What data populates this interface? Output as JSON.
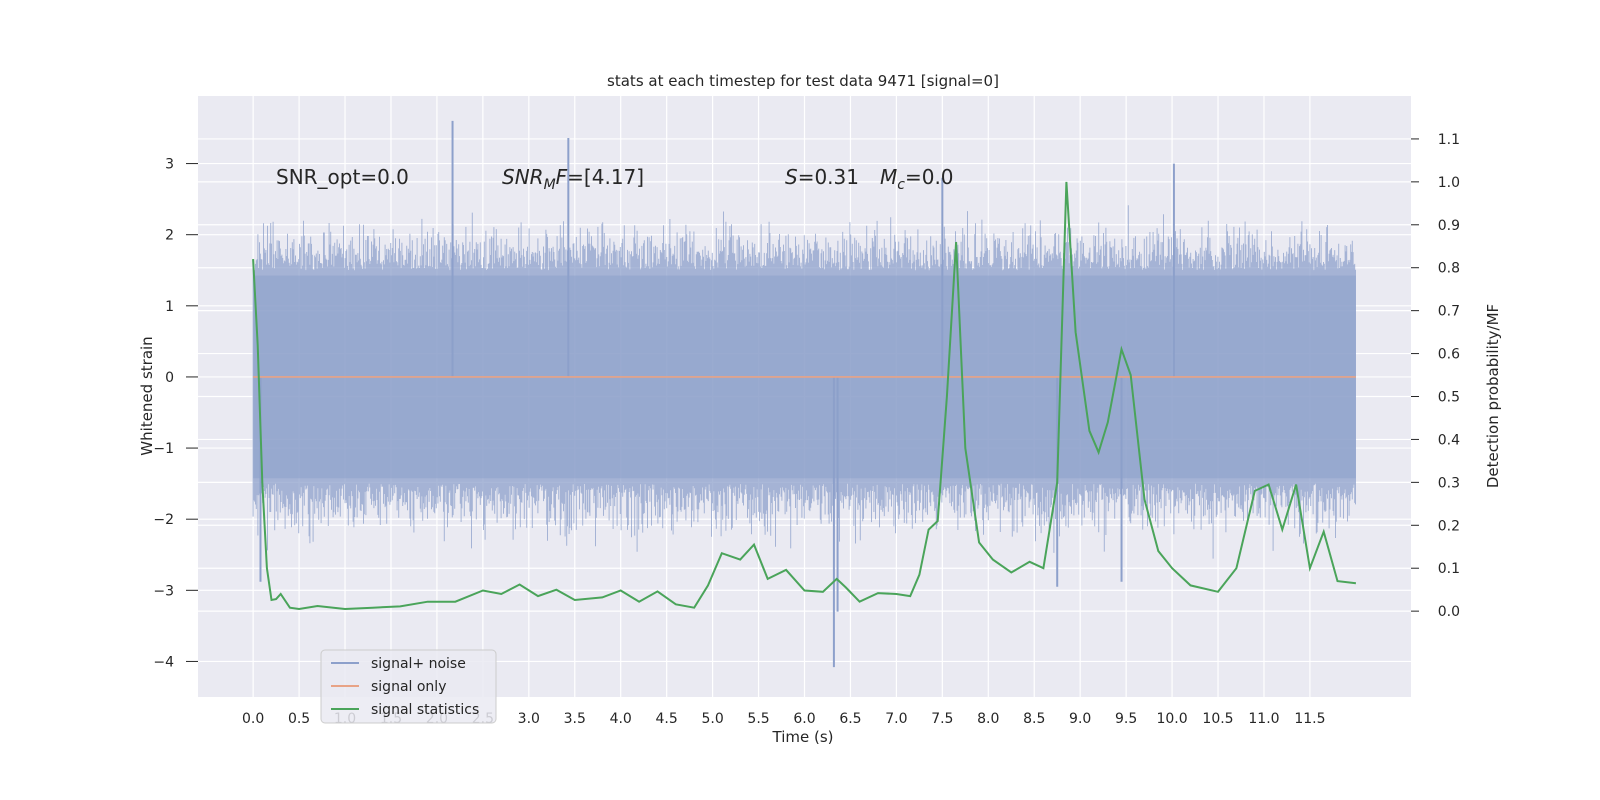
{
  "chart_data": {
    "type": "line",
    "title": "stats at each timestep for test data 9471 [signal=0]",
    "xlabel": "Time (s)",
    "ylabel": "Whitened strain",
    "ylabel_right": "Detection probability/MF",
    "xlim": [
      -0.6,
      12.6
    ],
    "ylim": [
      -4.5,
      3.95
    ],
    "ylim_right": [
      -0.2,
      1.2
    ],
    "x_ticks": [
      "0.0",
      "0.5",
      "1.0",
      "1.5",
      "2.0",
      "2.5",
      "3.0",
      "3.5",
      "4.0",
      "4.5",
      "5.0",
      "5.5",
      "6.0",
      "6.5",
      "7.0",
      "7.5",
      "8.0",
      "8.5",
      "9.0",
      "9.5",
      "10.0",
      "10.5",
      "11.0",
      "11.5"
    ],
    "y_ticks": [
      -4,
      -3,
      -2,
      -1,
      0,
      1,
      2,
      3
    ],
    "y_tick_labels": [
      "−4",
      "−3",
      "−2",
      "−1",
      "0",
      "1",
      "2",
      "3"
    ],
    "y2_ticks": [
      0.0,
      0.1,
      0.2,
      0.3,
      0.4,
      0.5,
      0.6,
      0.7,
      0.8,
      0.9,
      1.0,
      1.1
    ],
    "y2_tick_labels": [
      "0.0",
      "0.1",
      "0.2",
      "0.3",
      "0.4",
      "0.5",
      "0.6",
      "0.7",
      "0.8",
      "0.9",
      "1.0",
      "1.1"
    ],
    "annotations": [
      {
        "id": "snr-opt",
        "text": "SNR_opt=0.0"
      },
      {
        "id": "snr-mf",
        "base": "SNR",
        "sub": "M",
        "rest": "F=[4.17]"
      },
      {
        "id": "s-stat",
        "italic": "S",
        "rest": "=0.31"
      },
      {
        "id": "mc",
        "base": "M",
        "sub": "c",
        "rest": "=0.0"
      }
    ],
    "legend": {
      "position": "lower-left",
      "entries": [
        {
          "label": "signal+ noise",
          "color": "#8da0cb"
        },
        {
          "label": "signal only",
          "color": "#e8a386"
        },
        {
          "label": "signal statistics",
          "color": "#4aa45a"
        }
      ]
    },
    "series": [
      {
        "name": "signal+ noise",
        "axis": "left",
        "kind": "noise-band",
        "x_range": [
          0.0,
          12.0
        ],
        "typical_range": [
          -1.5,
          1.5
        ],
        "min": -4.08,
        "max": 3.6,
        "spikes": [
          {
            "x": 2.17,
            "y": 3.6
          },
          {
            "x": 3.43,
            "y": 3.36
          },
          {
            "x": 10.02,
            "y": 3.0
          },
          {
            "x": 7.5,
            "y": 2.8
          },
          {
            "x": 6.32,
            "y": -4.08
          },
          {
            "x": 6.36,
            "y": -3.3
          },
          {
            "x": 8.75,
            "y": -2.95
          },
          {
            "x": 9.45,
            "y": -2.88
          },
          {
            "x": 0.08,
            "y": -2.88
          }
        ]
      },
      {
        "name": "signal only",
        "axis": "left",
        "x": [
          0.0,
          12.0
        ],
        "y": [
          0.0,
          0.0
        ]
      },
      {
        "name": "signal statistics",
        "axis": "right",
        "x": [
          0.0,
          0.05,
          0.1,
          0.15,
          0.2,
          0.25,
          0.3,
          0.4,
          0.5,
          0.7,
          1.0,
          1.3,
          1.6,
          1.9,
          2.2,
          2.5,
          2.7,
          2.9,
          3.1,
          3.3,
          3.5,
          3.8,
          4.0,
          4.2,
          4.4,
          4.6,
          4.8,
          4.95,
          5.1,
          5.3,
          5.45,
          5.6,
          5.8,
          6.0,
          6.2,
          6.35,
          6.45,
          6.6,
          6.8,
          7.0,
          7.15,
          7.25,
          7.35,
          7.45,
          7.55,
          7.65,
          7.75,
          7.9,
          8.05,
          8.25,
          8.45,
          8.6,
          8.75,
          8.85,
          8.95,
          9.1,
          9.2,
          9.3,
          9.45,
          9.55,
          9.7,
          9.85,
          10.0,
          10.2,
          10.5,
          10.7,
          10.9,
          11.05,
          11.2,
          11.35,
          11.5,
          11.65,
          11.8,
          12.0
        ],
        "y": [
          0.82,
          0.62,
          0.3,
          0.1,
          0.026,
          0.028,
          0.04,
          0.008,
          0.005,
          0.012,
          0.005,
          0.008,
          0.011,
          0.022,
          0.022,
          0.048,
          0.04,
          0.062,
          0.035,
          0.05,
          0.026,
          0.032,
          0.048,
          0.022,
          0.046,
          0.016,
          0.008,
          0.06,
          0.135,
          0.12,
          0.155,
          0.075,
          0.096,
          0.048,
          0.045,
          0.075,
          0.055,
          0.022,
          0.042,
          0.04,
          0.035,
          0.085,
          0.19,
          0.21,
          0.5,
          0.86,
          0.38,
          0.16,
          0.12,
          0.09,
          0.115,
          0.1,
          0.3,
          1.0,
          0.65,
          0.42,
          0.37,
          0.44,
          0.61,
          0.55,
          0.26,
          0.14,
          0.1,
          0.06,
          0.045,
          0.1,
          0.28,
          0.295,
          0.19,
          0.295,
          0.1,
          0.185,
          0.07,
          0.065
        ]
      }
    ]
  }
}
